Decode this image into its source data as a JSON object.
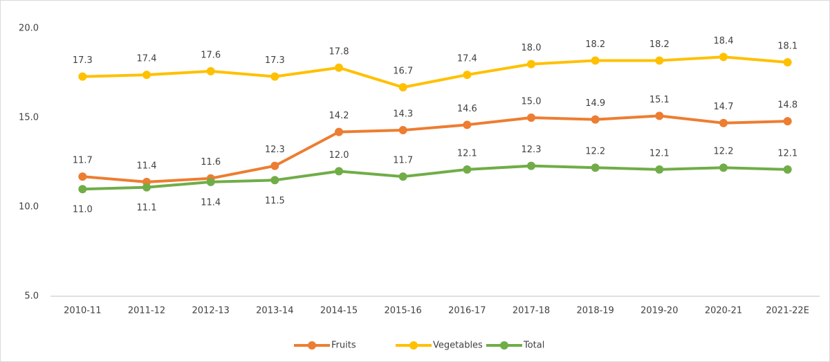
{
  "chart_data": {
    "type": "line",
    "categories": [
      "2010-11",
      "2011-12",
      "2012-13",
      "2013-14",
      "2014-15",
      "2015-16",
      "2016-17",
      "2017-18",
      "2018-19",
      "2019-20",
      "2020-21",
      "2021-22E"
    ],
    "series": [
      {
        "name": "Fruits",
        "color": "#ed7d31",
        "values": [
          11.7,
          11.4,
          11.6,
          12.3,
          14.2,
          14.3,
          14.6,
          15.0,
          14.9,
          15.1,
          14.7,
          14.8
        ],
        "value_labels": [
          "11.7",
          "11.4",
          "11.6",
          "12.3",
          "14.2",
          "14.3",
          "14.6",
          "15.0",
          "14.9",
          "15.1",
          "14.7",
          "14.8"
        ]
      },
      {
        "name": "Vegetables",
        "color": "#ffc000",
        "values": [
          17.3,
          17.4,
          17.6,
          17.3,
          17.8,
          16.7,
          17.4,
          18.0,
          18.2,
          18.2,
          18.4,
          18.1
        ],
        "value_labels": [
          "17.3",
          "17.4",
          "17.6",
          "17.3",
          "17.8",
          "16.7",
          "17.4",
          "18.0",
          "18.2",
          "18.2",
          "18.4",
          "18.1"
        ]
      },
      {
        "name": "Total",
        "color": "#70ad47",
        "values": [
          11.0,
          11.1,
          11.4,
          11.5,
          12.0,
          11.7,
          12.1,
          12.3,
          12.2,
          12.1,
          12.2,
          12.1
        ],
        "value_labels": [
          "11.0",
          "11.1",
          "11.4",
          "11.5",
          "12.0",
          "11.7",
          "12.1",
          "12.3",
          "12.2",
          "12.1",
          "12.2",
          "12.1"
        ]
      }
    ],
    "ylim": [
      5,
      20
    ],
    "yticks": [
      {
        "value": 5,
        "label": "5.0"
      },
      {
        "value": 10,
        "label": "10.0"
      },
      {
        "value": 15,
        "label": "15.0"
      },
      {
        "value": 20,
        "label": "20.0"
      }
    ],
    "grid": false,
    "legend": "bottom"
  }
}
